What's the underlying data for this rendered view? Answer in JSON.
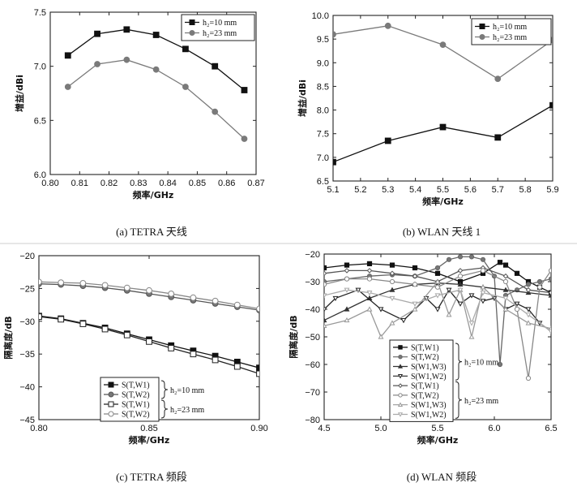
{
  "chart_data": [
    {
      "type": "line",
      "caption": "(a) TETRA 天线",
      "xlabel": "频率/GHz",
      "ylabel": "增益/dBi",
      "xlim": [
        0.8,
        0.87
      ],
      "ylim": [
        6.0,
        7.5
      ],
      "xticks": [
        0.8,
        0.81,
        0.82,
        0.83,
        0.84,
        0.85,
        0.86,
        0.87
      ],
      "xticklabels": [
        "0.80",
        "0.81",
        "0.82",
        "0.83",
        "0.84",
        "0.85",
        "0.86",
        "0.87"
      ],
      "yticks": [
        6.0,
        6.5,
        7.0,
        7.5
      ],
      "yticklabels": [
        "6.0",
        "6.5",
        "7.0",
        "7.5"
      ],
      "legend_position": "top-right",
      "legend_labels": [
        "h₂=10 mm",
        "h₂=23 mm"
      ],
      "series": [
        {
          "name": "h₂=10 mm",
          "color": "#111111",
          "marker": "square",
          "x": [
            0.806,
            0.816,
            0.826,
            0.836,
            0.846,
            0.856,
            0.866
          ],
          "y": [
            7.1,
            7.3,
            7.34,
            7.29,
            7.16,
            7.0,
            6.78
          ]
        },
        {
          "name": "h₂=23 mm",
          "color": "#7a7a7a",
          "marker": "circle",
          "x": [
            0.806,
            0.816,
            0.826,
            0.836,
            0.846,
            0.856,
            0.866
          ],
          "y": [
            6.81,
            7.02,
            7.06,
            6.97,
            6.81,
            6.58,
            6.33
          ]
        }
      ]
    },
    {
      "type": "line",
      "caption": "(b) WLAN 天线 1",
      "xlabel": "频率/GHz",
      "ylabel": "增益/dBi",
      "xlim": [
        5.1,
        5.9
      ],
      "ylim": [
        6.5,
        10.0
      ],
      "xticks": [
        5.1,
        5.2,
        5.3,
        5.4,
        5.5,
        5.6,
        5.7,
        5.8,
        5.9
      ],
      "xticklabels": [
        "5.1",
        "5.2",
        "5.3",
        "5.4",
        "5.5",
        "5.6",
        "5.7",
        "5.8",
        "5.9"
      ],
      "yticks": [
        6.5,
        7.0,
        7.5,
        8.0,
        8.5,
        9.0,
        9.5,
        10.0
      ],
      "yticklabels": [
        "6.5",
        "7.0",
        "7.5",
        "8.0",
        "8.5",
        "9.0",
        "9.5",
        "10.0"
      ],
      "legend_position": "top-right",
      "legend_labels": [
        "h₂=10 mm",
        "h₂=23 mm"
      ],
      "series": [
        {
          "name": "h₂=10 mm",
          "color": "#111111",
          "marker": "square",
          "x": [
            5.1,
            5.3,
            5.5,
            5.7,
            5.9
          ],
          "y": [
            6.9,
            7.35,
            7.64,
            7.42,
            8.1
          ]
        },
        {
          "name": "h₂=23 mm",
          "color": "#7a7a7a",
          "marker": "circle",
          "x": [
            5.1,
            5.3,
            5.5,
            5.7,
            5.9
          ],
          "y": [
            9.6,
            9.78,
            9.38,
            8.66,
            9.48
          ]
        }
      ]
    },
    {
      "type": "line",
      "caption": "(c) TETRA 频段",
      "xlabel": "频率/GHz",
      "ylabel": "隔离度/dB",
      "xlim": [
        0.8,
        0.9
      ],
      "ylim": [
        -45,
        -20
      ],
      "xticks": [
        0.8,
        0.85,
        0.9
      ],
      "xticklabels": [
        "0.80",
        "0.85",
        "0.90"
      ],
      "yticks": [
        -45,
        -40,
        -35,
        -30,
        -25,
        -20
      ],
      "yticklabels": [
        "−45",
        "−40",
        "−35",
        "−30",
        "−25",
        "−20"
      ],
      "legend_position": "bottom-right",
      "legend_labels": [
        "S(T,W1)",
        "S(T,W2)",
        "S(T,W1)",
        "S(T,W2)"
      ],
      "legend_groups": [
        "h₂=10 mm",
        "h₂=23 mm"
      ],
      "series": [
        {
          "name": "S(T,W1)",
          "group": "h₂=10 mm",
          "color": "#111111",
          "marker": "square",
          "fill": "#111111",
          "x": [
            0.8,
            0.81,
            0.82,
            0.83,
            0.84,
            0.85,
            0.86,
            0.87,
            0.88,
            0.89,
            0.9
          ],
          "y": [
            -29.2,
            -29.6,
            -30.3,
            -31.0,
            -31.9,
            -32.8,
            -33.7,
            -34.5,
            -35.3,
            -36.2,
            -37.1
          ]
        },
        {
          "name": "S(T,W2)",
          "group": "h₂=10 mm",
          "color": "#555555",
          "marker": "circle",
          "fill": "#777777",
          "x": [
            0.8,
            0.81,
            0.82,
            0.83,
            0.84,
            0.85,
            0.86,
            0.87,
            0.88,
            0.89,
            0.9
          ],
          "y": [
            -24.3,
            -24.4,
            -24.6,
            -24.9,
            -25.3,
            -25.8,
            -26.3,
            -26.8,
            -27.3,
            -27.8,
            -28.3
          ]
        },
        {
          "name": "S(T,W1)",
          "group": "h₂=23 mm",
          "color": "#222222",
          "marker": "square",
          "fill": "#ffffff",
          "x": [
            0.8,
            0.81,
            0.82,
            0.83,
            0.84,
            0.85,
            0.86,
            0.87,
            0.88,
            0.89,
            0.9
          ],
          "y": [
            -29.3,
            -29.7,
            -30.4,
            -31.2,
            -32.1,
            -33.1,
            -34.1,
            -35.0,
            -35.9,
            -36.9,
            -38.0
          ]
        },
        {
          "name": "S(T,W2)",
          "group": "h₂=23 mm",
          "color": "#888888",
          "marker": "circle",
          "fill": "#ffffff",
          "x": [
            0.8,
            0.81,
            0.82,
            0.83,
            0.84,
            0.85,
            0.86,
            0.87,
            0.88,
            0.89,
            0.9
          ],
          "y": [
            -24.0,
            -24.1,
            -24.2,
            -24.5,
            -24.9,
            -25.3,
            -25.8,
            -26.4,
            -26.9,
            -27.5,
            -28.1
          ]
        }
      ]
    },
    {
      "type": "line",
      "caption": "(d) WLAN 频段",
      "xlabel": "频率/GHz",
      "ylabel": "隔离度/dB",
      "xlim": [
        4.5,
        6.5
      ],
      "ylim": [
        -80,
        -20
      ],
      "xticks": [
        4.5,
        5.0,
        5.5,
        6.0,
        6.5
      ],
      "xticklabels": [
        "4.5",
        "5.0",
        "5.5",
        "6.0",
        "6.5"
      ],
      "yticks": [
        -80,
        -70,
        -60,
        -50,
        -40,
        -30,
        -20
      ],
      "yticklabels": [
        "−80",
        "−70",
        "−60",
        "−50",
        "−40",
        "−30",
        "−20"
      ],
      "legend_position": "bottom-left",
      "legend_labels": [
        "S(T,W1)",
        "S(T,W2)",
        "S(W1,W3)",
        "S(W1,W2)",
        "S(T,W1)",
        "S(T,W2)",
        "S(W1,W3)",
        "S(W1,W2)"
      ],
      "legend_groups": [
        "h₂=10 mm",
        "h₂=23 mm"
      ],
      "series": [
        {
          "name": "S(T,W1)",
          "group": "h₂=10 mm",
          "color": "#111111",
          "marker": "square",
          "fill": "#111111",
          "x": [
            4.5,
            4.7,
            4.9,
            5.1,
            5.3,
            5.5,
            5.7,
            5.9,
            6.05,
            6.1,
            6.2,
            6.3,
            6.4,
            6.5
          ],
          "y": [
            -25,
            -24,
            -23.5,
            -24,
            -25,
            -27,
            -30,
            -27,
            -23,
            -24,
            -27,
            -30,
            -32,
            -34
          ]
        },
        {
          "name": "S(T,W2)",
          "group": "h₂=10 mm",
          "color": "#666666",
          "marker": "circle",
          "fill": "#777777",
          "x": [
            4.5,
            4.7,
            4.9,
            5.1,
            5.3,
            5.5,
            5.6,
            5.7,
            5.8,
            5.9,
            6.0,
            6.05,
            6.1,
            6.2,
            6.3,
            6.4,
            6.5
          ],
          "y": [
            -30,
            -29,
            -28,
            -27.5,
            -28,
            -25,
            -22,
            -21,
            -21,
            -22,
            -28,
            -60,
            -35,
            -33,
            -31,
            -30,
            -29
          ]
        },
        {
          "name": "S(W1,W3)",
          "group": "h₂=10 mm",
          "color": "#333333",
          "marker": "triangle",
          "fill": "#333333",
          "x": [
            4.5,
            4.7,
            4.9,
            5.1,
            5.3,
            5.5,
            5.7,
            5.9,
            6.1,
            6.3,
            6.5
          ],
          "y": [
            -44,
            -40,
            -36,
            -33,
            -31,
            -30.5,
            -31,
            -32,
            -33,
            -34,
            -35
          ]
        },
        {
          "name": "S(W1,W2)",
          "group": "h₂=10 mm",
          "color": "#222222",
          "marker": "triangle-down",
          "fill": "#ffffff",
          "x": [
            4.5,
            4.6,
            4.8,
            5.0,
            5.2,
            5.4,
            5.5,
            5.6,
            5.7,
            5.8,
            5.9,
            6.0,
            6.1,
            6.2,
            6.3,
            6.4,
            6.5
          ],
          "y": [
            -40,
            -36,
            -33,
            -40,
            -44,
            -36,
            -40,
            -33,
            -38,
            -35,
            -37,
            -36,
            -40,
            -38,
            -40,
            -45,
            -48
          ]
        },
        {
          "name": "S(T,W1)",
          "group": "h₂=23 mm",
          "color": "#555555",
          "marker": "diamond",
          "fill": "#ffffff",
          "x": [
            4.5,
            4.7,
            4.9,
            5.1,
            5.3,
            5.5,
            5.7,
            5.9,
            6.1,
            6.3,
            6.5
          ],
          "y": [
            -27,
            -26,
            -26,
            -27,
            -28,
            -30,
            -26,
            -25,
            -28,
            -33,
            -34
          ]
        },
        {
          "name": "S(T,W2)",
          "group": "h₂=23 mm",
          "color": "#888888",
          "marker": "circle",
          "fill": "#ffffff",
          "x": [
            4.5,
            4.7,
            4.9,
            5.1,
            5.3,
            5.5,
            5.7,
            5.9,
            6.1,
            6.2,
            6.3,
            6.4,
            6.5
          ],
          "y": [
            -31,
            -29,
            -29,
            -30,
            -31,
            -32,
            -28,
            -26,
            -30,
            -40,
            -65,
            -32,
            -26
          ]
        },
        {
          "name": "S(W1,W3)",
          "group": "h₂=23 mm",
          "color": "#999999",
          "marker": "triangle",
          "fill": "#ffffff",
          "x": [
            4.5,
            4.7,
            4.9,
            5.0,
            5.1,
            5.3,
            5.5,
            5.6,
            5.7,
            5.8,
            5.9,
            6.1,
            6.3,
            6.5
          ],
          "y": [
            -46,
            -44,
            -40,
            -50,
            -45,
            -40,
            -30,
            -42,
            -33,
            -50,
            -32,
            -40,
            -45,
            -47
          ]
        },
        {
          "name": "S(W1,W2)",
          "group": "h₂=23 mm",
          "color": "#aaaaaa",
          "marker": "triangle-down",
          "fill": "#ffffff",
          "x": [
            4.5,
            4.7,
            4.9,
            5.1,
            5.3,
            5.5,
            5.7,
            5.8,
            5.9,
            6.1,
            6.3,
            6.5
          ],
          "y": [
            -35,
            -33,
            -34,
            -36,
            -38,
            -35,
            -33,
            -45,
            -34,
            -36,
            -42,
            -48
          ]
        }
      ]
    }
  ]
}
